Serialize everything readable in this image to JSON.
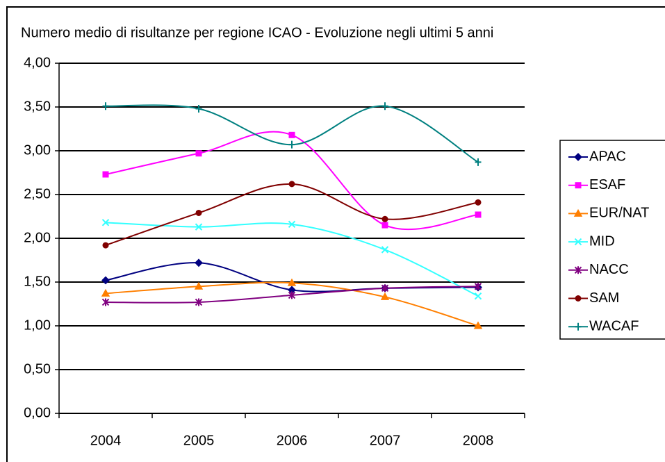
{
  "chart_data": {
    "type": "line",
    "title": "Numero medio di risultanze per regione ICAO - Evoluzione negli ultimi 5 anni",
    "categories": [
      "2004",
      "2005",
      "2006",
      "2007",
      "2008"
    ],
    "ylim": [
      0,
      4
    ],
    "yticks": [
      {
        "value": 0,
        "label": "0,00"
      },
      {
        "value": 0.5,
        "label": "0,50"
      },
      {
        "value": 1,
        "label": "1,00"
      },
      {
        "value": 1.5,
        "label": "1,50"
      },
      {
        "value": 2,
        "label": "2,00"
      },
      {
        "value": 2.5,
        "label": "2,50"
      },
      {
        "value": 3,
        "label": "3,00"
      },
      {
        "value": 3.5,
        "label": "3,50"
      },
      {
        "value": 4,
        "label": "4,00"
      }
    ],
    "grid": true,
    "smooth": true,
    "legend": "right",
    "series": [
      {
        "name": "APAC",
        "color": "#000080",
        "marker": "diamond",
        "values": [
          1.52,
          1.72,
          1.41,
          1.43,
          1.44
        ]
      },
      {
        "name": "ESAF",
        "color": "#ff00ff",
        "marker": "square",
        "values": [
          2.73,
          2.97,
          3.18,
          2.15,
          2.27
        ]
      },
      {
        "name": "EUR/NAT",
        "color": "#ff7f00",
        "marker": "triangle",
        "values": [
          1.37,
          1.45,
          1.49,
          1.33,
          1.0
        ]
      },
      {
        "name": "MID",
        "color": "#33ffff",
        "marker": "star",
        "values": [
          2.18,
          2.13,
          2.16,
          1.87,
          1.34
        ]
      },
      {
        "name": "NACC",
        "color": "#800080",
        "marker": "asterisk",
        "values": [
          1.27,
          1.27,
          1.35,
          1.43,
          1.45
        ]
      },
      {
        "name": "SAM",
        "color": "#800000",
        "marker": "circle",
        "values": [
          1.92,
          2.29,
          2.62,
          2.22,
          2.41
        ]
      },
      {
        "name": "WACAF",
        "color": "#008080",
        "marker": "plus",
        "values": [
          3.51,
          3.48,
          3.07,
          3.51,
          2.87
        ]
      }
    ]
  }
}
